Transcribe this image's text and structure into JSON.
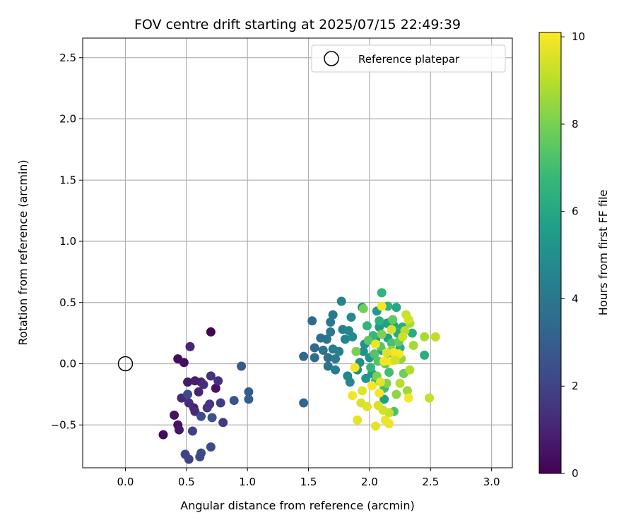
{
  "chart_data": {
    "type": "scatter",
    "title": "FOV centre drift starting at 2025/07/15 22:49:39",
    "xlabel": "Angular distance from reference (arcmin)",
    "ylabel": "Rotation from reference (arcmin)",
    "xlim": [
      -0.35,
      3.17
    ],
    "ylim": [
      -0.85,
      2.66
    ],
    "xticks": [
      0.0,
      0.5,
      1.0,
      1.5,
      2.0,
      2.5,
      3.0
    ],
    "xtick_labels": [
      "0.0",
      "0.5",
      "1.0",
      "1.5",
      "2.0",
      "2.5",
      "3.0"
    ],
    "yticks": [
      -0.5,
      0.0,
      0.5,
      1.0,
      1.5,
      2.0,
      2.5
    ],
    "ytick_labels": [
      "−0.5",
      "0.0",
      "0.5",
      "1.0",
      "1.5",
      "2.0",
      "2.5"
    ],
    "grid": true,
    "legend": {
      "placement": "top-right",
      "entries": [
        {
          "label": "Reference platepar",
          "marker": "open-circle",
          "color": "#000000"
        }
      ]
    },
    "reference_point": {
      "x": 0.0,
      "y": 0.0
    },
    "colorbar": {
      "label": "Hours from first FF file",
      "range": [
        0,
        10.1
      ],
      "ticks": [
        0,
        2,
        4,
        6,
        8,
        10
      ],
      "tick_labels": [
        "0",
        "2",
        "4",
        "6",
        "8",
        "10"
      ],
      "colormap": "viridis"
    },
    "points": [
      {
        "x": 0.7,
        "y": 0.26,
        "t": 0.1
      },
      {
        "x": 0.31,
        "y": -0.58,
        "t": 0.3
      },
      {
        "x": 0.43,
        "y": 0.04,
        "t": 0.3
      },
      {
        "x": 0.48,
        "y": 0.01,
        "t": 0.4
      },
      {
        "x": 0.4,
        "y": -0.42,
        "t": 0.5
      },
      {
        "x": 0.43,
        "y": -0.5,
        "t": 0.5
      },
      {
        "x": 0.44,
        "y": -0.54,
        "t": 0.6
      },
      {
        "x": 0.74,
        "y": -0.2,
        "t": 0.5
      },
      {
        "x": 0.51,
        "y": -0.15,
        "t": 0.7
      },
      {
        "x": 0.57,
        "y": -0.14,
        "t": 0.8
      },
      {
        "x": 0.62,
        "y": -0.15,
        "t": 0.9
      },
      {
        "x": 0.56,
        "y": -0.36,
        "t": 0.9
      },
      {
        "x": 0.6,
        "y": -0.23,
        "t": 1.0
      },
      {
        "x": 0.53,
        "y": 0.14,
        "t": 1.1
      },
      {
        "x": 0.46,
        "y": -0.28,
        "t": 1.2
      },
      {
        "x": 0.57,
        "y": -0.39,
        "t": 1.2
      },
      {
        "x": 0.52,
        "y": -0.32,
        "t": 1.3
      },
      {
        "x": 0.64,
        "y": -0.17,
        "t": 1.3
      },
      {
        "x": 0.76,
        "y": -0.14,
        "t": 1.4
      },
      {
        "x": 0.7,
        "y": -0.1,
        "t": 1.5
      },
      {
        "x": 0.67,
        "y": -0.36,
        "t": 1.6
      },
      {
        "x": 0.69,
        "y": -0.33,
        "t": 1.6
      },
      {
        "x": 0.8,
        "y": -0.48,
        "t": 1.7
      },
      {
        "x": 0.78,
        "y": -0.32,
        "t": 1.8
      },
      {
        "x": 0.55,
        "y": -0.55,
        "t": 1.9
      },
      {
        "x": 0.49,
        "y": -0.74,
        "t": 2.0
      },
      {
        "x": 0.52,
        "y": -0.78,
        "t": 2.0
      },
      {
        "x": 0.61,
        "y": -0.76,
        "t": 2.1
      },
      {
        "x": 0.62,
        "y": -0.73,
        "t": 2.2
      },
      {
        "x": 0.7,
        "y": -0.68,
        "t": 2.3
      },
      {
        "x": 0.51,
        "y": -0.25,
        "t": 2.3
      },
      {
        "x": 0.62,
        "y": -0.43,
        "t": 2.4
      },
      {
        "x": 0.71,
        "y": -0.44,
        "t": 2.5
      },
      {
        "x": 0.89,
        "y": -0.3,
        "t": 2.6
      },
      {
        "x": 0.95,
        "y": -0.02,
        "t": 2.8
      },
      {
        "x": 1.01,
        "y": -0.23,
        "t": 2.9
      },
      {
        "x": 1.01,
        "y": -0.29,
        "t": 3.0
      },
      {
        "x": 1.46,
        "y": -0.32,
        "t": 3.3
      },
      {
        "x": 1.46,
        "y": 0.06,
        "t": 3.4
      },
      {
        "x": 1.53,
        "y": 0.35,
        "t": 3.5
      },
      {
        "x": 1.55,
        "y": 0.13,
        "t": 3.5
      },
      {
        "x": 1.55,
        "y": 0.05,
        "t": 3.6
      },
      {
        "x": 1.6,
        "y": 0.21,
        "t": 3.7
      },
      {
        "x": 1.62,
        "y": 0.11,
        "t": 3.8
      },
      {
        "x": 1.65,
        "y": 0.2,
        "t": 3.8
      },
      {
        "x": 1.66,
        "y": 0.05,
        "t": 3.8
      },
      {
        "x": 1.66,
        "y": -0.02,
        "t": 3.9
      },
      {
        "x": 1.68,
        "y": 0.34,
        "t": 4.0
      },
      {
        "x": 1.7,
        "y": 0.4,
        "t": 4.0
      },
      {
        "x": 1.68,
        "y": 0.26,
        "t": 4.1
      },
      {
        "x": 1.7,
        "y": 0.12,
        "t": 4.2
      },
      {
        "x": 1.72,
        "y": 0.04,
        "t": 4.2
      },
      {
        "x": 1.72,
        "y": -0.05,
        "t": 4.3
      },
      {
        "x": 1.75,
        "y": 0.1,
        "t": 4.4
      },
      {
        "x": 1.77,
        "y": 0.51,
        "t": 4.5
      },
      {
        "x": 1.78,
        "y": 0.28,
        "t": 4.5
      },
      {
        "x": 1.8,
        "y": 0.2,
        "t": 4.6
      },
      {
        "x": 1.82,
        "y": -0.1,
        "t": 4.6
      },
      {
        "x": 1.83,
        "y": 0.27,
        "t": 4.7
      },
      {
        "x": 1.84,
        "y": -0.15,
        "t": 4.7
      },
      {
        "x": 1.85,
        "y": 0.38,
        "t": 4.8
      },
      {
        "x": 1.86,
        "y": 0.22,
        "t": 4.8
      },
      {
        "x": 1.9,
        "y": -0.05,
        "t": 4.9
      },
      {
        "x": 1.92,
        "y": 0.01,
        "t": 4.9
      },
      {
        "x": 1.94,
        "y": 0.46,
        "t": 5.0
      },
      {
        "x": 1.95,
        "y": 0.1,
        "t": 5.0
      },
      {
        "x": 1.96,
        "y": 0.16,
        "t": 5.1
      },
      {
        "x": 1.97,
        "y": -0.12,
        "t": 5.2
      },
      {
        "x": 2.0,
        "y": 0.05,
        "t": 5.2
      },
      {
        "x": 2.02,
        "y": -0.08,
        "t": 5.3
      },
      {
        "x": 2.05,
        "y": 0.2,
        "t": 5.4
      },
      {
        "x": 2.06,
        "y": 0.43,
        "t": 5.5
      },
      {
        "x": 2.08,
        "y": 0.3,
        "t": 5.5
      },
      {
        "x": 2.1,
        "y": 0.11,
        "t": 5.6
      },
      {
        "x": 2.12,
        "y": -0.29,
        "t": 5.6
      },
      {
        "x": 2.14,
        "y": 0.33,
        "t": 5.7
      },
      {
        "x": 2.15,
        "y": 0.21,
        "t": 5.7
      },
      {
        "x": 2.17,
        "y": 0.34,
        "t": 5.8
      },
      {
        "x": 2.18,
        "y": 0.05,
        "t": 5.9
      },
      {
        "x": 2.2,
        "y": 0.31,
        "t": 6.0
      },
      {
        "x": 2.22,
        "y": 0.46,
        "t": 6.0
      },
      {
        "x": 2.23,
        "y": 0.25,
        "t": 6.1
      },
      {
        "x": 2.25,
        "y": 0.13,
        "t": 6.2
      },
      {
        "x": 2.27,
        "y": 0.3,
        "t": 6.2
      },
      {
        "x": 2.35,
        "y": 0.25,
        "t": 6.3
      },
      {
        "x": 2.45,
        "y": 0.07,
        "t": 6.3
      },
      {
        "x": 2.08,
        "y": 0.35,
        "t": 6.4
      },
      {
        "x": 2.15,
        "y": 0.47,
        "t": 6.5
      },
      {
        "x": 2.1,
        "y": 0.58,
        "t": 6.6
      },
      {
        "x": 1.98,
        "y": 0.31,
        "t": 6.6
      },
      {
        "x": 2.01,
        "y": -0.03,
        "t": 6.7
      },
      {
        "x": 2.03,
        "y": 0.23,
        "t": 6.8
      },
      {
        "x": 2.05,
        "y": -0.14,
        "t": 6.9
      },
      {
        "x": 2.12,
        "y": -0.2,
        "t": 7.0
      },
      {
        "x": 2.16,
        "y": -0.07,
        "t": 7.0
      },
      {
        "x": 2.18,
        "y": 0.17,
        "t": 7.1
      },
      {
        "x": 2.2,
        "y": -0.39,
        "t": 7.2
      },
      {
        "x": 2.04,
        "y": 0.08,
        "t": 7.3
      },
      {
        "x": 2.07,
        "y": 0.02,
        "t": 7.3
      },
      {
        "x": 2.09,
        "y": 0.14,
        "t": 7.4
      },
      {
        "x": 1.99,
        "y": 0.19,
        "t": 7.5
      },
      {
        "x": 2.13,
        "y": 0.0,
        "t": 7.5
      },
      {
        "x": 2.19,
        "y": 0.36,
        "t": 7.6
      },
      {
        "x": 2.24,
        "y": 0.18,
        "t": 7.7
      },
      {
        "x": 2.28,
        "y": -0.08,
        "t": 7.8
      },
      {
        "x": 1.95,
        "y": 0.45,
        "t": 7.9
      },
      {
        "x": 1.89,
        "y": 0.1,
        "t": 8.0
      },
      {
        "x": 2.06,
        "y": -0.1,
        "t": 8.0
      },
      {
        "x": 2.1,
        "y": 0.24,
        "t": 8.1
      },
      {
        "x": 2.14,
        "y": -0.16,
        "t": 8.2
      },
      {
        "x": 2.18,
        "y": 0.11,
        "t": 8.3
      },
      {
        "x": 2.22,
        "y": -0.25,
        "t": 8.4
      },
      {
        "x": 2.26,
        "y": 0.04,
        "t": 8.5
      },
      {
        "x": 2.31,
        "y": -0.22,
        "t": 8.6
      },
      {
        "x": 2.33,
        "y": 0.33,
        "t": 8.7
      },
      {
        "x": 2.36,
        "y": 0.15,
        "t": 8.7
      },
      {
        "x": 2.45,
        "y": 0.22,
        "t": 8.8
      },
      {
        "x": 2.33,
        "y": -0.05,
        "t": 8.9
      },
      {
        "x": 2.29,
        "y": 0.27,
        "t": 9.0
      },
      {
        "x": 2.25,
        "y": -0.16,
        "t": 9.0
      },
      {
        "x": 2.54,
        "y": 0.22,
        "t": 9.1
      },
      {
        "x": 2.49,
        "y": -0.28,
        "t": 9.2
      },
      {
        "x": 2.16,
        "y": -0.4,
        "t": 9.2
      },
      {
        "x": 2.3,
        "y": 0.4,
        "t": 9.3
      },
      {
        "x": 2.32,
        "y": 0.36,
        "t": 9.4
      },
      {
        "x": 2.11,
        "y": -0.38,
        "t": 9.4
      },
      {
        "x": 2.07,
        "y": -0.34,
        "t": 9.5
      },
      {
        "x": 1.93,
        "y": -0.32,
        "t": 9.5
      },
      {
        "x": 1.98,
        "y": -0.35,
        "t": 9.6
      },
      {
        "x": 1.94,
        "y": -0.22,
        "t": 9.6
      },
      {
        "x": 1.9,
        "y": -0.46,
        "t": 9.7
      },
      {
        "x": 2.05,
        "y": -0.51,
        "t": 9.7
      },
      {
        "x": 2.13,
        "y": -0.46,
        "t": 9.8
      },
      {
        "x": 2.16,
        "y": -0.49,
        "t": 9.8
      },
      {
        "x": 1.86,
        "y": -0.26,
        "t": 9.9
      },
      {
        "x": 1.88,
        "y": -0.03,
        "t": 9.9
      },
      {
        "x": 2.02,
        "y": -0.18,
        "t": 10.0
      },
      {
        "x": 2.08,
        "y": -0.24,
        "t": 10.0
      },
      {
        "x": 2.12,
        "y": 0.02,
        "t": 10.0
      },
      {
        "x": 2.17,
        "y": 0.02,
        "t": 10.0
      },
      {
        "x": 2.2,
        "y": 0.09,
        "t": 10.0
      },
      {
        "x": 2.24,
        "y": 0.08,
        "t": 10.0
      },
      {
        "x": 2.1,
        "y": 0.47,
        "t": 10.0
      },
      {
        "x": 2.32,
        "y": -0.28,
        "t": 10.0
      },
      {
        "x": 2.05,
        "y": 0.16,
        "t": 9.8
      },
      {
        "x": 2.09,
        "y": -0.15,
        "t": 9.7
      },
      {
        "x": 2.14,
        "y": 0.09,
        "t": 9.6
      },
      {
        "x": 2.18,
        "y": 0.28,
        "t": 9.5
      },
      {
        "x": 2.21,
        "y": 0.03,
        "t": 9.4
      },
      {
        "x": 2.27,
        "y": 0.22,
        "t": 9.3
      }
    ]
  }
}
